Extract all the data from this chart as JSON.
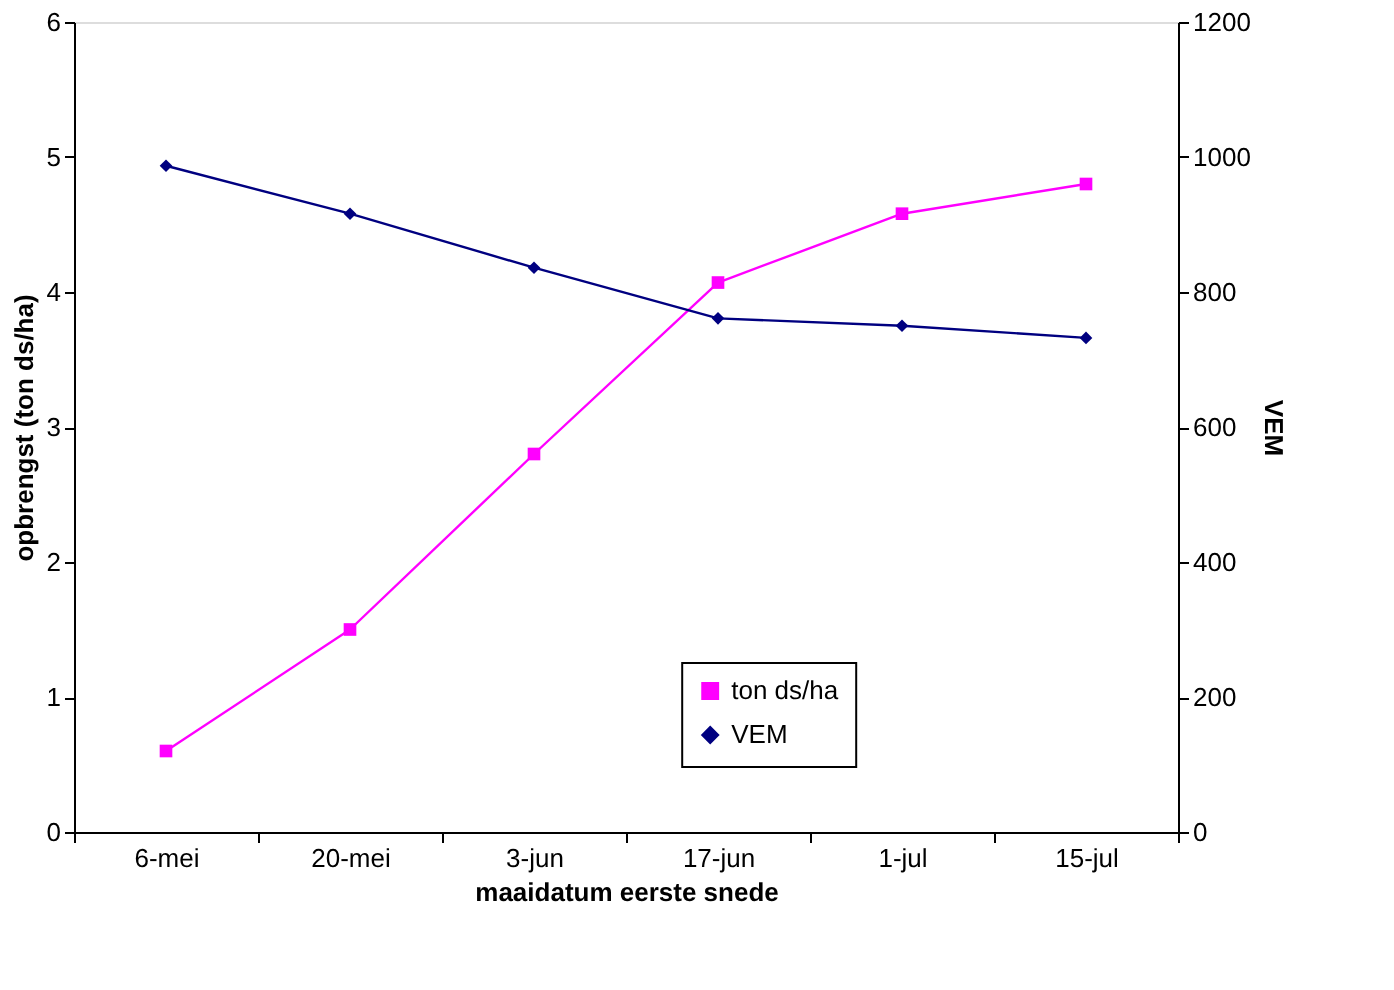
{
  "chart_data": {
    "type": "line",
    "xlabel": "maaidatum eerste snede",
    "ylabel": "opbrengst (ton ds/ha)",
    "y2label": "VEM",
    "categories": [
      "6-mei",
      "20-mei",
      "3-jun",
      "17-jun",
      "1-jul",
      "15-jul"
    ],
    "series": [
      {
        "name": "ton ds/ha",
        "color": "#ff00ff",
        "marker": "square",
        "values": [
          0.6,
          1.5,
          2.8,
          4.07,
          4.58,
          4.8
        ]
      },
      {
        "name": "VEM",
        "color": "#000080",
        "marker": "diamond",
        "axis": "y2",
        "values": [
          987,
          916,
          836,
          761,
          750,
          732
        ]
      }
    ],
    "ylim": [
      0,
      6
    ],
    "yticks": [
      0,
      1,
      2,
      3,
      4,
      5,
      6
    ],
    "y2lim": [
      0,
      1200
    ],
    "y2ticks": [
      0,
      200,
      400,
      600,
      800,
      1000,
      1200
    ],
    "grid": false,
    "legend": "bottom",
    "line_style": "solid"
  }
}
